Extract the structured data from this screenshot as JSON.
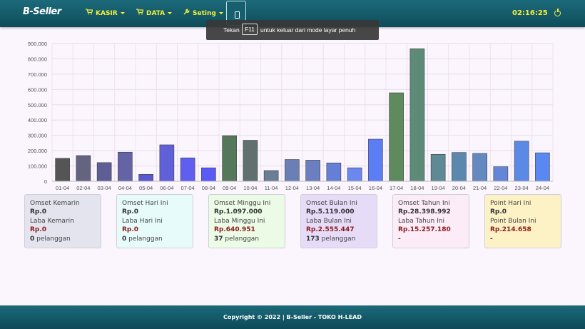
{
  "navbar": {
    "brand": "B-Seller",
    "kasir": "KASIR",
    "data": "DATA",
    "seting": "Seting",
    "clock": "02:16:25"
  },
  "toast": {
    "prefix": "Tekan",
    "key": "F11",
    "suffix": "untuk keluar dari mode layar penuh"
  },
  "chart_data": {
    "type": "bar",
    "categories": [
      "01-04",
      "02-04",
      "03-04",
      "04-04",
      "05-04",
      "06-04",
      "07-04",
      "08-04",
      "09-04",
      "10-04",
      "11-04",
      "12-04",
      "13-04",
      "14-04",
      "15-04",
      "16-04",
      "17-04",
      "18-04",
      "19-04",
      "20-04",
      "21-04",
      "22-04",
      "23-04",
      "24-04"
    ],
    "values": [
      150000,
      168000,
      122000,
      190000,
      45000,
      238000,
      153000,
      88000,
      298000,
      268000,
      70000,
      142000,
      138000,
      120000,
      88000,
      275000,
      578000,
      866000,
      176000,
      188000,
      182000,
      95000,
      262000,
      186000
    ],
    "colors": [
      "#555555",
      "#646480",
      "#5e5e96",
      "#6363a6",
      "#5858cf",
      "#6060d9",
      "#5e5ef0",
      "#5a5af7",
      "#55785a",
      "#5f706e",
      "#6a7e96",
      "#6a80b4",
      "#6a7ec0",
      "#667fd6",
      "#6b88ee",
      "#5b7ef7",
      "#5e8a5e",
      "#5e8b78",
      "#5e8a96",
      "#5d88ae",
      "#6389c0",
      "#6485d8",
      "#5b8ae6",
      "#5a88f2"
    ],
    "ylim": [
      0,
      900000
    ],
    "yticks": [
      "0",
      "100.000",
      "200.000",
      "300.000",
      "400.000",
      "500.000",
      "600.000",
      "700.000",
      "800.000",
      "900.000"
    ],
    "grid": true,
    "title": "",
    "xlabel": "",
    "ylabel": ""
  },
  "cards": [
    {
      "title": "Omset Kemarin",
      "value": "Rp.0",
      "label2": "Laba Kemarin",
      "value2": "Rp.0",
      "count": "0",
      "count_label": "pelanggan",
      "bg": "#e4e4ef"
    },
    {
      "title": "Omset Hari Ini",
      "value": "Rp.0",
      "label2": "Laba Hari Ini",
      "value2": "Rp.0",
      "count": "0",
      "count_label": "pelanggan",
      "bg": "#e8fbfb"
    },
    {
      "title": "Omset Minggu Ini",
      "value": "Rp.1.097.000",
      "label2": "Laba Minggu Ini",
      "value2": "Rp.640.951",
      "count": "37",
      "count_label": "pelanggan",
      "bg": "#ebfbe6"
    },
    {
      "title": "Omset Bulan Ini",
      "value": "Rp.5.119.000",
      "label2": "Laba Bulan Ini",
      "value2": "Rp.2.555.447",
      "count": "173",
      "count_label": "pelanggan",
      "bg": "#e6dcf8"
    },
    {
      "title": "Omset Tahun Ini",
      "value": "Rp.28.398.992",
      "label2": "Laba Tahun Ini",
      "value2": "Rp.15.257.180",
      "count": "-",
      "count_label": "",
      "bg": "#fbecf8"
    },
    {
      "title": "Point Hari Ini",
      "value": "Rp.0",
      "label2": "Point Bulan Ini",
      "value2": "Rp.214.658",
      "count": "-",
      "count_label": "",
      "bg": "#fdf2c6"
    }
  ],
  "footer": "Copyright © 2022 | B-Seller - TOKO H-LEAD"
}
